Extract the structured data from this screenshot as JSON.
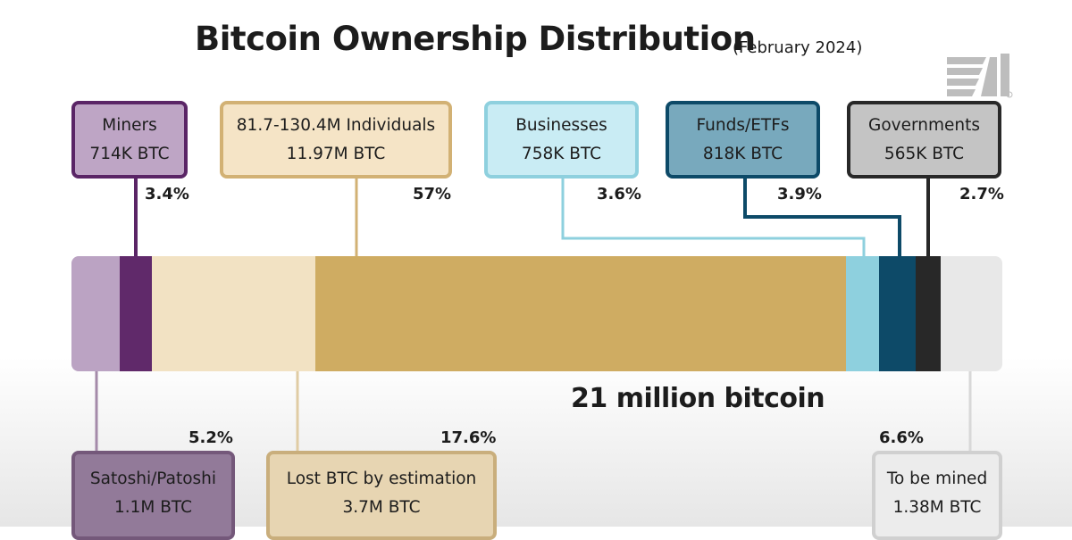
{
  "chart_data": {
    "type": "bar",
    "title": "Bitcoin Ownership Distribution",
    "subtitle": "(February 2024)",
    "total_label": "21 million bitcoin",
    "segments": [
      {
        "name": "Satoshi/Patoshi",
        "amount": "1.1M BTC",
        "percent": "5.2%",
        "value": 5.2,
        "color": "#bba3c3",
        "edge": "#74587a"
      },
      {
        "name": "Miners",
        "amount": "714K BTC",
        "percent": "3.4%",
        "value": 3.4,
        "color": "#60296a",
        "edge": "#5a2566"
      },
      {
        "name": "Lost BTC by estimation",
        "amount": "3.7M BTC",
        "percent": "17.6%",
        "value": 17.6,
        "color": "#f2e2c3",
        "edge": "#c9ae7c"
      },
      {
        "name": "81.7-130.4M Individuals",
        "amount": "11.97M BTC",
        "percent": "57%",
        "value": 57,
        "color": "#cfac62",
        "edge": "#d2b174"
      },
      {
        "name": "Businesses",
        "amount": "758K BTC",
        "percent": "3.6%",
        "value": 3.6,
        "color": "#8ed0de",
        "edge": "#8ed0de"
      },
      {
        "name": "Funds/ETFs",
        "amount": "818K BTC",
        "percent": "3.9%",
        "value": 3.9,
        "color": "#0d4a68",
        "edge": "#0d4a68"
      },
      {
        "name": "Governments",
        "amount": "565K BTC",
        "percent": "2.7%",
        "value": 2.7,
        "color": "#282828",
        "edge": "#282828"
      },
      {
        "name": "To be mined",
        "amount": "1.38M BTC",
        "percent": "6.6%",
        "value": 6.6,
        "color": "#e8e8e8",
        "edge": "#d0d0d0"
      }
    ]
  }
}
